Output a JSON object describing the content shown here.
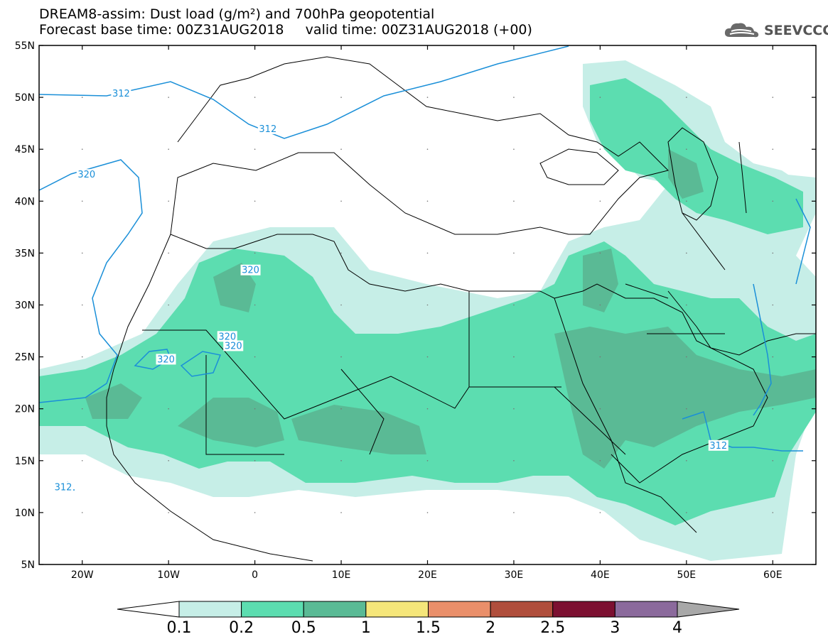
{
  "header": {
    "title_line1": "DREAM8-assim: Dust load (g/m²) and 700hPa geopotential",
    "title_line2": "Forecast base time: 00Z31AUG2018     valid time: 00Z31AUG2018 (+00)",
    "logo_text": "SEEVCCC",
    "logo_icon": "cloud-icon"
  },
  "map": {
    "lat_labels": [
      "55N",
      "50N",
      "45N",
      "40N",
      "35N",
      "30N",
      "25N",
      "20N",
      "15N",
      "10N",
      "5N"
    ],
    "lon_labels": [
      "20W",
      "10W",
      "0",
      "10E",
      "20E",
      "30E",
      "40E",
      "50E",
      "60E"
    ],
    "lat_range": [
      5,
      55
    ],
    "lon_range": [
      -25,
      65
    ],
    "contour_labels": [
      {
        "text": "312",
        "lon": -15.5,
        "lat": 50.2
      },
      {
        "text": "312",
        "lon": 1.5,
        "lat": 46.8
      },
      {
        "text": "320",
        "lon": -19.5,
        "lat": 42.4
      },
      {
        "text": "320",
        "lon": -0.5,
        "lat": 33.2
      },
      {
        "text": "320",
        "lon": -3.2,
        "lat": 26.8
      },
      {
        "text": "320",
        "lon": -2.5,
        "lat": 25.9
      },
      {
        "text": "320",
        "lon": -10.3,
        "lat": 24.6
      },
      {
        "text": "312",
        "lon": -22.2,
        "lat": 12.3
      },
      {
        "text": "312",
        "lon": 53.7,
        "lat": 16.3
      }
    ]
  },
  "colorbar": {
    "ticks": [
      "0.1",
      "0.2",
      "0.5",
      "1",
      "1.5",
      "2",
      "2.5",
      "3",
      "4"
    ],
    "colors": [
      "#c6eee7",
      "#5cddb0",
      "#5aba95",
      "#f5e67a",
      "#ea8f6a",
      "#b04e3c",
      "#7c1031",
      "#8b6a9c"
    ],
    "under_color": "#ffffff",
    "over_color": "#a8a8a8"
  }
}
